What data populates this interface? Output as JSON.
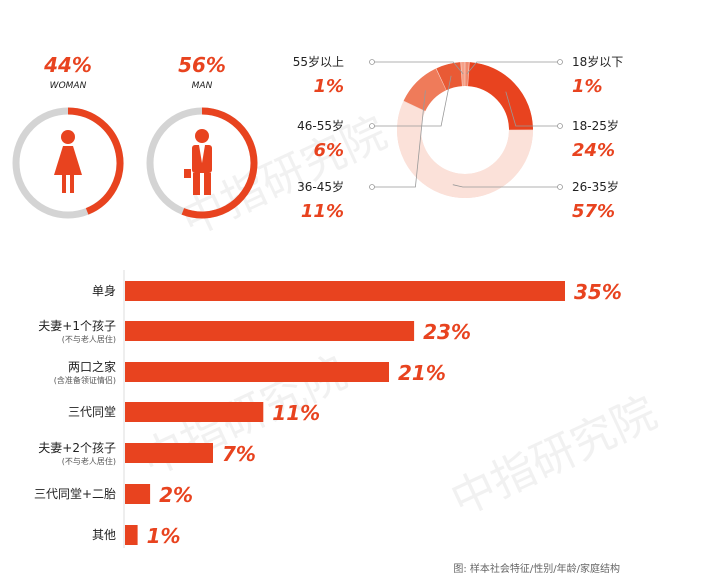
{
  "colors": {
    "accent": "#e8431f",
    "track": "#d4d4d4",
    "text": "#222222",
    "line": "#999999",
    "watermark": "#d8d8d8"
  },
  "gender": [
    {
      "pct_label": "44%",
      "label": "WOMAN",
      "value": 0.44,
      "icon": "woman-icon"
    },
    {
      "pct_label": "56%",
      "label": "MAN",
      "value": 0.56,
      "icon": "man-icon"
    }
  ],
  "chart_data": [
    {
      "type": "pie",
      "categories": [
        "18岁以下",
        "18-25岁",
        "26-35岁",
        "36-45岁",
        "46-55岁",
        "55岁以上"
      ],
      "values": [
        1,
        24,
        57,
        11,
        6,
        1
      ],
      "labels": [
        "1%",
        "24%",
        "57%",
        "11%",
        "6%",
        "1%"
      ]
    },
    {
      "type": "bar",
      "categories": [
        "单身",
        "夫妻+1个孩子",
        "两口之家",
        "三代同堂",
        "夫妻+2个孩子",
        "三代同堂+二胎",
        "其他"
      ],
      "sublabels": [
        "",
        "(不与老人居住)",
        "(含准备领证情侣)",
        "",
        "(不与老人居住)",
        "",
        ""
      ],
      "values": [
        35,
        23,
        21,
        11,
        7,
        2,
        1
      ],
      "labels": [
        "35%",
        "23%",
        "21%",
        "11%",
        "7%",
        "2%",
        "1%"
      ]
    }
  ],
  "source": "图: 样本社会特征/性别/年龄/家庭结构",
  "watermark": "中指研究院"
}
